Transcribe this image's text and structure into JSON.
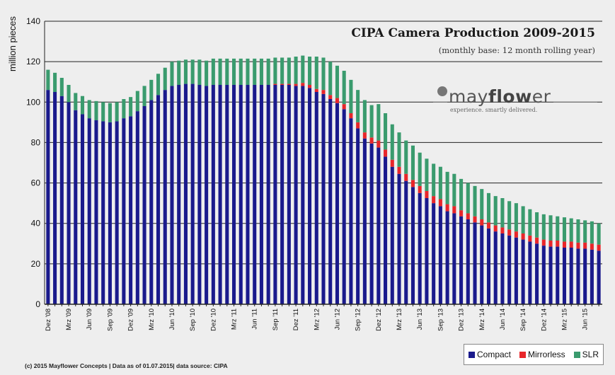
{
  "chart_data": {
    "type": "bar",
    "stacked": true,
    "title": "CIPA Camera Production 2009-2015",
    "subtitle": "(monthly base: 12 month rolling year)",
    "ylabel": "million pieces",
    "xlabel": "",
    "ylim": [
      0,
      140
    ],
    "yticks": [
      0,
      20,
      40,
      60,
      80,
      100,
      120,
      140
    ],
    "grid": true,
    "legend_position": "bottom-right",
    "categories": [
      "Dez '08",
      "Jan '09",
      "Feb '09",
      "Mrz '09",
      "Apr '09",
      "Mai '09",
      "Jun '09",
      "Jul '09",
      "Aug '09",
      "Sep '09",
      "Okt '09",
      "Nov '09",
      "Dez '09",
      "Jan '10",
      "Feb '10",
      "Mrz '10",
      "Apr '10",
      "Mai '10",
      "Jun '10",
      "Jul '10",
      "Aug '10",
      "Sep '10",
      "Okt '10",
      "Nov '10",
      "Dez '10",
      "Jan '11",
      "Feb '11",
      "Mrz '11",
      "Apr '11",
      "Mai '11",
      "Jun '11",
      "Jul '11",
      "Aug '11",
      "Sep '11",
      "Okt '11",
      "Nov '11",
      "Dez '11",
      "Jan '12",
      "Feb '12",
      "Mrz '12",
      "Apr '12",
      "Mai '12",
      "Jun '12",
      "Jul '12",
      "Aug '12",
      "Sep '12",
      "Okt '12",
      "Nov '12",
      "Dez '12",
      "Jan '13",
      "Feb '13",
      "Mrz '13",
      "Apr '13",
      "Mai '13",
      "Jun '13",
      "Jul '13",
      "Aug '13",
      "Sep '13",
      "Okt '13",
      "Nov '13",
      "Dez '13",
      "Jan '14",
      "Feb '14",
      "Mrz '14",
      "Apr '14",
      "Mai '14",
      "Jun '14",
      "Jul '14",
      "Aug '14",
      "Sep '14",
      "Okt '14",
      "Nov '14",
      "Dez '14",
      "Jan '15",
      "Feb '15",
      "Mrz '15",
      "Apr '15",
      "Mai '15",
      "Jun '15",
      "Jul '15",
      "Aug '15"
    ],
    "tick_labels": [
      "Dez '08",
      "Mrz '09",
      "Jun '09",
      "Sep '09",
      "Dez '09",
      "Mrz '10",
      "Jun '10",
      "Sep '10",
      "Dez '10",
      "Mrz '11",
      "Jun '11",
      "Sep '11",
      "Dez '11",
      "Mrz '12",
      "Jun '12",
      "Sep '12",
      "Dez '12",
      "Mrz '13",
      "Jun '13",
      "Sep '13",
      "Dez '13",
      "Mrz '14",
      "Jun '14",
      "Sep '14",
      "Dez '14",
      "Mrz '15",
      "Jun '15"
    ],
    "series": [
      {
        "name": "Compact",
        "color": "#1a1a8c",
        "values": [
          106,
          105,
          103,
          100,
          96,
          94,
          92,
          91,
          90.5,
          90,
          90.5,
          92,
          93,
          95.5,
          98,
          101,
          103.5,
          106,
          108,
          108.5,
          109,
          109,
          108.5,
          108,
          108.5,
          108.5,
          108.5,
          108.5,
          108.5,
          108.5,
          108.5,
          108.5,
          108.5,
          108.5,
          108.5,
          108.5,
          108,
          108,
          107,
          105,
          104,
          101.5,
          99.5,
          96.5,
          92,
          87,
          82,
          79.5,
          77.5,
          73,
          68,
          64.5,
          61,
          58,
          55,
          52.5,
          50,
          48.5,
          46,
          45,
          43.5,
          42,
          40.5,
          39,
          37.5,
          36,
          35,
          34,
          33,
          32,
          31,
          30,
          29,
          28.5,
          28.5,
          28,
          28,
          27.5,
          27.5,
          27,
          26.5
        ]
      },
      {
        "name": "Mirrorless",
        "color": "#e8262a",
        "values": [
          0,
          0,
          0,
          0,
          0,
          0,
          0,
          0,
          0,
          0,
          0,
          0,
          0,
          0,
          0,
          0,
          0,
          0,
          0,
          0,
          0,
          0,
          0,
          0,
          0,
          0,
          0,
          0,
          0,
          0,
          0,
          0,
          0,
          0.5,
          0.5,
          0.5,
          1,
          1.5,
          1.5,
          1.5,
          2,
          2,
          2.5,
          2.5,
          2.5,
          3,
          3,
          3,
          3.5,
          3.5,
          3.5,
          3.5,
          3.5,
          3.5,
          3.5,
          3.5,
          3.5,
          3.5,
          3.5,
          3.5,
          3,
          3,
          3,
          3,
          3,
          3,
          3,
          3,
          3,
          3,
          3,
          3,
          3,
          3,
          3,
          3,
          3,
          3,
          3,
          3,
          3
        ]
      },
      {
        "name": "SLR",
        "color": "#3a9b6e",
        "values": [
          10,
          9.5,
          9,
          8.5,
          8.5,
          9,
          9,
          9.5,
          9.5,
          9.5,
          9.5,
          9.5,
          9.5,
          10,
          10,
          10,
          10.5,
          11,
          12,
          12,
          12,
          12,
          12.5,
          12.5,
          13,
          13,
          13,
          13,
          13,
          13,
          13,
          13,
          13,
          13,
          13,
          13,
          13.5,
          13.5,
          14,
          16,
          16,
          16.5,
          16,
          16.5,
          16.5,
          16,
          16,
          16,
          18,
          18,
          17.5,
          17,
          16.5,
          17,
          16.5,
          16,
          16,
          16,
          16,
          16,
          15.5,
          15,
          15,
          15,
          14.5,
          14.5,
          14.5,
          14,
          14,
          13.5,
          13,
          12.5,
          12.5,
          12.5,
          12,
          12,
          11.5,
          11.5,
          11,
          11,
          10.5
        ]
      }
    ]
  },
  "footer": "(c) 2015 Mayflower Concepts | Data as of 01.07.2015| data source: CIPA",
  "logo": {
    "text_light": "may",
    "text_bold": "flow",
    "text_end": "er",
    "tagline": "experience. smartly delivered."
  },
  "legend_items": [
    {
      "label": "Compact",
      "color": "#1a1a8c"
    },
    {
      "label": "Mirrorless",
      "color": "#e8262a"
    },
    {
      "label": "SLR",
      "color": "#3a9b6e"
    }
  ]
}
